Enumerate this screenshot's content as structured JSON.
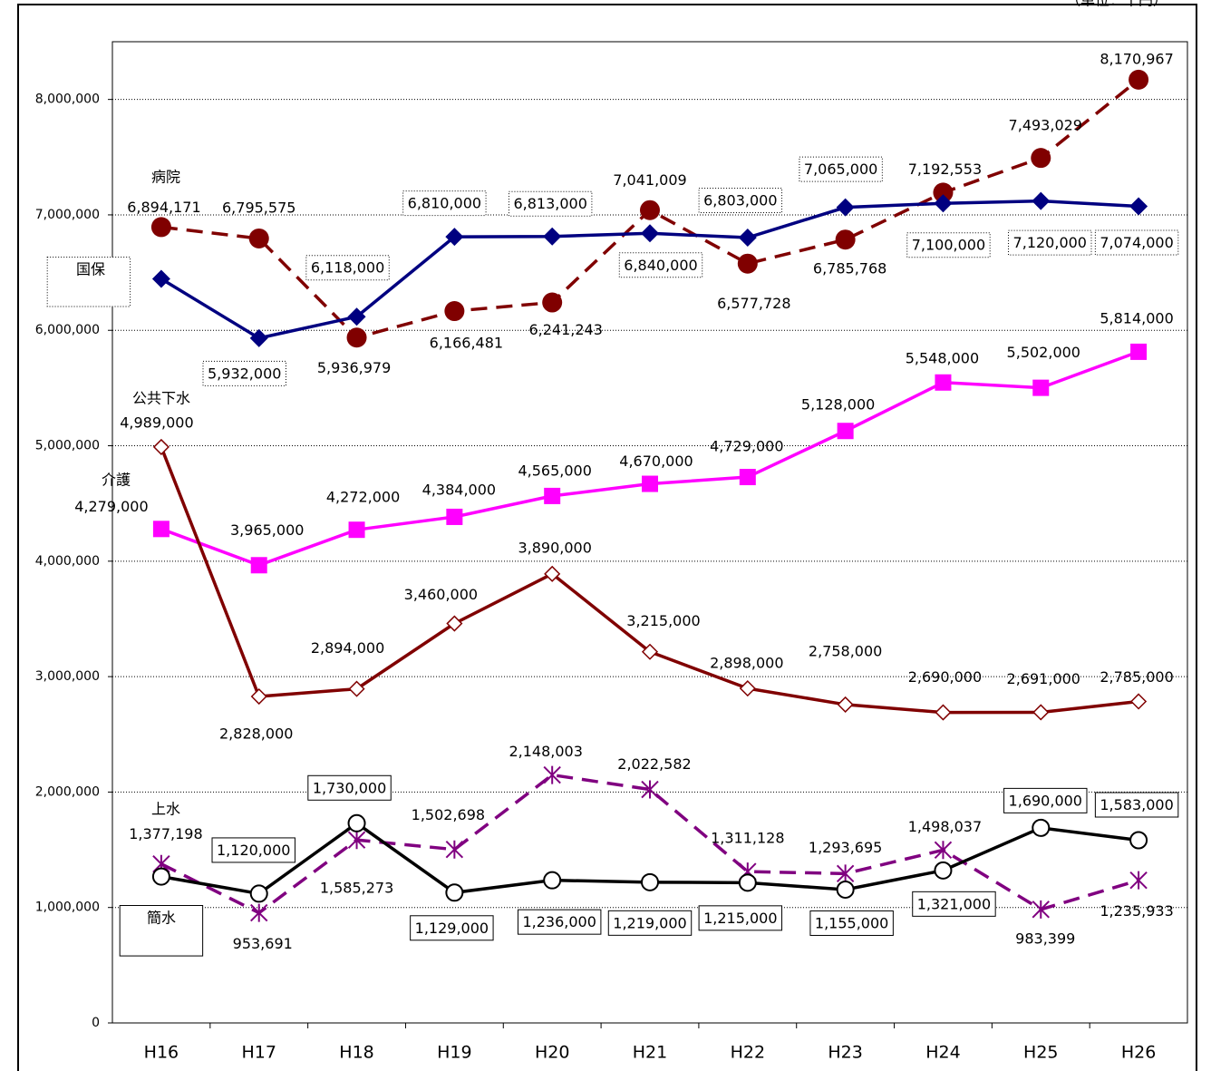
{
  "chart_data": {
    "type": "line",
    "unit_note": "（単位：千円）",
    "categories": [
      "H16",
      "H17",
      "H18",
      "H19",
      "H20",
      "H21",
      "H22",
      "H23",
      "H24",
      "H25",
      "H26"
    ],
    "ylim": [
      0,
      8500000
    ],
    "yticks": [
      0,
      {
        "value": 1000000,
        "label": "1,000,000"
      },
      {
        "value": 2000000,
        "label": "2,000,000"
      },
      {
        "value": 3000000,
        "label": "3,000,000"
      },
      {
        "value": 4000000,
        "label": "4,000,000"
      },
      {
        "value": 5000000,
        "label": "5,000,000"
      },
      {
        "value": 6000000,
        "label": "6,000,000"
      },
      {
        "value": 7000000,
        "label": "7,000,000"
      },
      {
        "value": 8000000,
        "label": "8,000,000"
      }
    ],
    "grid": true,
    "series": [
      {
        "name": "病院",
        "color": "#800000",
        "line_style": "dashed",
        "marker": "circle",
        "label_box": "none",
        "values": [
          6894171,
          6795575,
          5936979,
          6166481,
          6241243,
          7041009,
          6577728,
          6785768,
          7192553,
          7493029,
          8170967
        ],
        "value_labels": [
          "6,894,171",
          "6,795,575",
          "5,936,979",
          "6,166,481",
          "6,241,243",
          "7,041,009",
          "6,577,728",
          "6,785,768",
          "7,192,553",
          "7,493,029",
          "8,170,967"
        ]
      },
      {
        "name": "国保",
        "color": "#000080",
        "line_style": "solid",
        "marker": "diamond",
        "label_box": "dotted",
        "values": [
          6446000,
          5932000,
          6118000,
          6810000,
          6813000,
          6840000,
          6803000,
          7065000,
          7100000,
          7120000,
          7074000
        ],
        "value_labels": [
          "6,446,000",
          "5,932,000",
          "6,118,000",
          "6,810,000",
          "6,813,000",
          "6,840,000",
          "6,803,000",
          "7,065,000",
          "7,100,000",
          "7,120,000",
          "7,074,000"
        ]
      },
      {
        "name": "介護",
        "color": "#ff00ff",
        "line_style": "solid",
        "marker": "square",
        "label_box": "none",
        "values": [
          4279000,
          3965000,
          4272000,
          4384000,
          4565000,
          4670000,
          4729000,
          5128000,
          5548000,
          5502000,
          5814000
        ],
        "value_labels": [
          "4,279,000",
          "3,965,000",
          "4,272,000",
          "4,384,000",
          "4,565,000",
          "4,670,000",
          "4,729,000",
          "5,128,000",
          "5,548,000",
          "5,502,000",
          "5,814,000"
        ]
      },
      {
        "name": "公共下水",
        "color": "#800000",
        "line_style": "solid",
        "marker": "open-diamond",
        "label_box": "none",
        "values": [
          4989000,
          2828000,
          2894000,
          3460000,
          3890000,
          3215000,
          2898000,
          2758000,
          2690000,
          2691000,
          2785000
        ],
        "value_labels": [
          "4,989,000",
          "2,828,000",
          "2,894,000",
          "3,460,000",
          "3,890,000",
          "3,215,000",
          "2,898,000",
          "2,758,000",
          "2,690,000",
          "2,691,000",
          "2,785,000"
        ]
      },
      {
        "name": "上水",
        "color": "#800080",
        "line_style": "dashed",
        "marker": "asterisk",
        "label_box": "none",
        "values": [
          1377198,
          953691,
          1585273,
          1502698,
          2148003,
          2022582,
          1311128,
          1293695,
          1498037,
          983399,
          1235933
        ],
        "value_labels": [
          "1,377,198",
          "953,691",
          "1,585,273",
          "1,502,698",
          "2,148,003",
          "2,022,582",
          "1,311,128",
          "1,293,695",
          "1,498,037",
          "983,399",
          "1,235,933"
        ]
      },
      {
        "name": "簡水",
        "color": "#000000",
        "line_style": "solid",
        "marker": "open-circle",
        "label_box": "solid",
        "values": [
          1268000,
          1120000,
          1730000,
          1129000,
          1236000,
          1219000,
          1215000,
          1155000,
          1321000,
          1690000,
          1583000
        ],
        "value_labels": [
          "1,268,000",
          "1,120,000",
          "1,730,000",
          "1,129,000",
          "1,236,000",
          "1,219,000",
          "1,215,000",
          "1,155,000",
          "1,321,000",
          "1,690,000",
          "1,583,000"
        ]
      }
    ]
  }
}
